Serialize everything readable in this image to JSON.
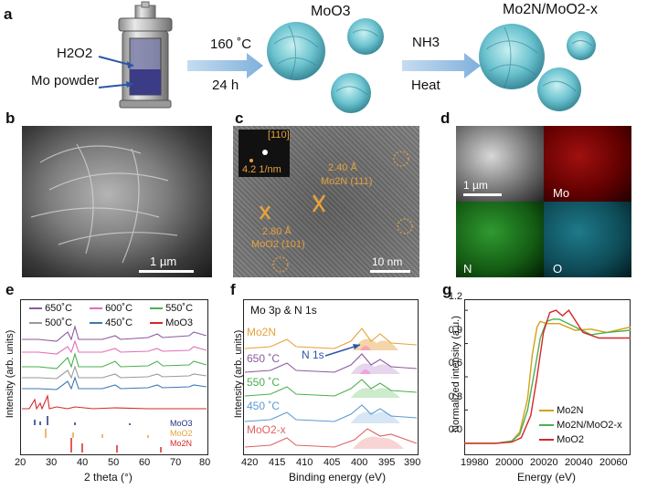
{
  "panels": {
    "a": "a",
    "b": "b",
    "c": "c",
    "d": "d",
    "e": "e",
    "f": "f",
    "g": "g"
  },
  "a": {
    "reactant1": "H2O2",
    "reactant2": "Mo powder",
    "cond1_top": "160 ˚C",
    "cond1_bottom": "24 h",
    "product1": "MoO3",
    "cond2_top": "NH3",
    "cond2_bottom": "Heat",
    "product2": "Mo2N/MoO2-x"
  },
  "b": {
    "scale": "1 µm"
  },
  "c": {
    "fft_index": "[110]",
    "fft_scale": "4.2 1/nm",
    "d1": "2.40 Å",
    "d1_phase": "Mo2N (111)",
    "d2": "2.80 Å",
    "d2_phase": "MoO2 (101)",
    "scale": "10 nm"
  },
  "d": {
    "scale": "1 µm",
    "maps": [
      "Mo",
      "N",
      "O"
    ]
  },
  "e": {
    "xlabel": "2 theta (°)",
    "ylabel": "Intensity (arb. units)",
    "xticks": [
      "20",
      "30",
      "40",
      "50",
      "60",
      "70",
      "80"
    ],
    "legend": [
      "650˚C",
      "600˚C",
      "550˚C",
      "500˚C",
      "450˚C",
      "MoO3"
    ],
    "legend_colors": [
      "#8b5a9e",
      "#e06fb7",
      "#4caf50",
      "#999999",
      "#3a78b5",
      "#d62728"
    ],
    "refs": [
      "MoO3",
      "MoO2",
      "Mo2N"
    ],
    "ref_colors": [
      "#1f2f7a",
      "#e6a23c",
      "#d62728"
    ]
  },
  "f": {
    "title": "Mo 3p & N 1s",
    "xlabel": "Binding energy (eV)",
    "ylabel": "Intensity (arb. units)",
    "xticks": [
      "420",
      "415",
      "410",
      "405",
      "400",
      "395",
      "390"
    ],
    "labels": [
      "Mo2N",
      "650 ˚C",
      "550 ˚C",
      "450 ˚C",
      "MoO2-x"
    ],
    "label_colors": [
      "#e6a23c",
      "#8b5a9e",
      "#4caf50",
      "#5a9bd4",
      "#e06060"
    ],
    "n1s": "N 1s"
  },
  "g": {
    "xlabel": "Energy (eV)",
    "ylabel": "Normalized intensity (a.u.)",
    "xticks": [
      "19980",
      "20000",
      "20020",
      "20040",
      "20060"
    ],
    "yticks": [
      "0.0",
      "0.3",
      "0.6",
      "0.9",
      "1.2"
    ],
    "legend": [
      "Mo2N",
      "Mo2N/MoO2-x",
      "MoO2"
    ],
    "legend_colors": [
      "#d4a017",
      "#4caf50",
      "#d62728"
    ]
  },
  "chart_data": [
    {
      "type": "line",
      "panel": "g",
      "xlabel": "Energy (eV)",
      "ylabel": "Normalized intensity (a.u.)",
      "xlim": [
        19970,
        20075
      ],
      "ylim": [
        -0.1,
        1.3
      ],
      "series": [
        {
          "name": "Mo2N",
          "x": [
            19970,
            19990,
            20000,
            20005,
            20010,
            20013,
            20016,
            20018,
            20022,
            20030,
            20040,
            20050,
            20060,
            20075
          ],
          "values": [
            0.0,
            0.0,
            0.02,
            0.1,
            0.4,
            0.8,
            1.05,
            1.1,
            1.08,
            1.08,
            1.02,
            1.03,
            1.0,
            1.05
          ]
        },
        {
          "name": "Mo2N/MoO2-x",
          "x": [
            19970,
            19990,
            20000,
            20005,
            20010,
            20015,
            20018,
            20022,
            20026,
            20030,
            20040,
            20050,
            20060,
            20075
          ],
          "values": [
            0.0,
            0.0,
            0.02,
            0.08,
            0.3,
            0.7,
            0.95,
            1.1,
            1.12,
            1.12,
            1.05,
            0.98,
            1.0,
            1.02
          ]
        },
        {
          "name": "MoO2",
          "x": [
            19970,
            19990,
            20000,
            20006,
            20012,
            20016,
            20020,
            20024,
            20028,
            20032,
            20036,
            20045,
            20055,
            20075
          ],
          "values": [
            0.0,
            0.0,
            0.01,
            0.05,
            0.25,
            0.6,
            1.0,
            1.18,
            1.2,
            1.15,
            1.2,
            1.0,
            0.95,
            0.95
          ]
        }
      ]
    }
  ]
}
